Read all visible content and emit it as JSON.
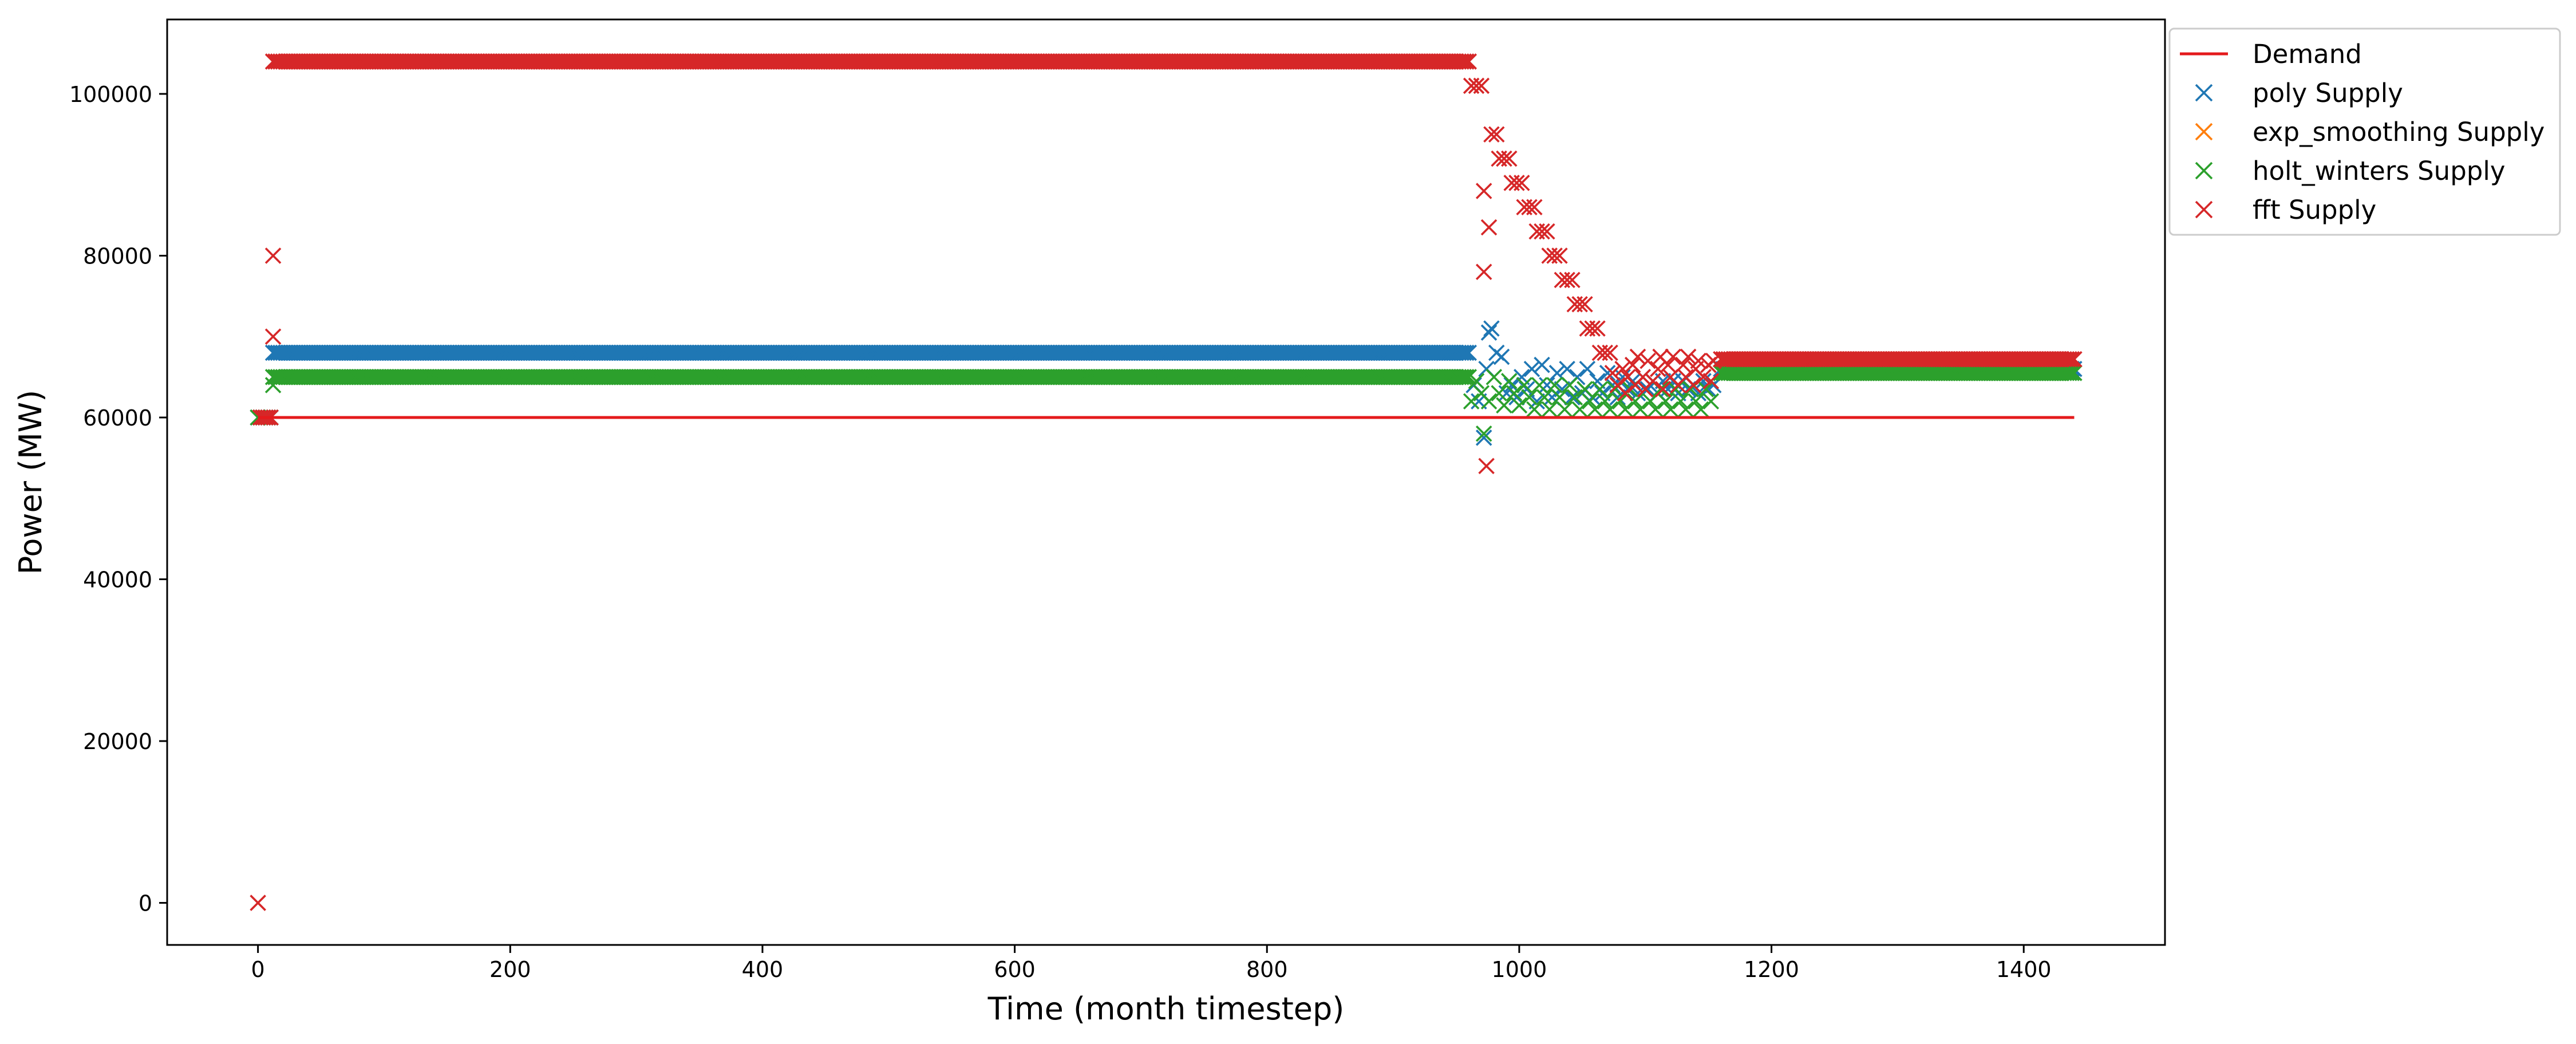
{
  "chart_data": {
    "type": "scatter",
    "title": "",
    "xlabel": "Time (month timestep)",
    "ylabel": "Power (MW)",
    "xlim": [
      -72,
      1512
    ],
    "ylim": [
      -5200,
      109200
    ],
    "xticks": [
      0,
      200,
      400,
      600,
      800,
      1000,
      1200,
      1400
    ],
    "yticks": [
      0,
      20000,
      40000,
      60000,
      80000,
      100000
    ],
    "grid": false,
    "legend_position": "outside-top-right",
    "series": [
      {
        "name": "Demand",
        "mark": "line",
        "color": "#e41a1c",
        "x": [
          0,
          1440
        ],
        "y": [
          60000,
          60000
        ]
      },
      {
        "name": "poly Supply",
        "mark": "x",
        "color": "#1f77b4",
        "segments": [
          {
            "x_start": 0,
            "x_end": 10,
            "step": 2,
            "y": 60000
          },
          {
            "x_start": 12,
            "x_end": 960,
            "step": 2,
            "y": 68000
          },
          {
            "x_start": 1160,
            "x_end": 1440,
            "step": 2,
            "y": 66000
          }
        ],
        "points": [
          [
            964,
            64000
          ],
          [
            968,
            62000
          ],
          [
            972,
            57500
          ],
          [
            974,
            66000
          ],
          [
            976,
            70500
          ],
          [
            978,
            71000
          ],
          [
            982,
            68000
          ],
          [
            986,
            67500
          ],
          [
            990,
            63000
          ],
          [
            994,
            64000
          ],
          [
            998,
            62500
          ],
          [
            1002,
            65000
          ],
          [
            1006,
            63500
          ],
          [
            1010,
            66000
          ],
          [
            1014,
            62000
          ],
          [
            1018,
            66500
          ],
          [
            1022,
            64000
          ],
          [
            1026,
            62500
          ],
          [
            1030,
            65500
          ],
          [
            1034,
            63500
          ],
          [
            1038,
            66000
          ],
          [
            1042,
            62500
          ],
          [
            1046,
            65000
          ],
          [
            1050,
            63000
          ],
          [
            1054,
            66000
          ],
          [
            1058,
            62500
          ],
          [
            1062,
            64500
          ],
          [
            1066,
            63000
          ],
          [
            1070,
            65500
          ],
          [
            1074,
            64000
          ],
          [
            1078,
            62500
          ],
          [
            1082,
            65000
          ],
          [
            1086,
            63500
          ],
          [
            1090,
            64500
          ],
          [
            1094,
            63000
          ],
          [
            1098,
            65000
          ],
          [
            1102,
            63500
          ],
          [
            1106,
            64500
          ],
          [
            1110,
            63000
          ],
          [
            1114,
            64500
          ],
          [
            1118,
            63500
          ],
          [
            1122,
            64500
          ],
          [
            1126,
            63000
          ],
          [
            1130,
            64500
          ],
          [
            1134,
            63500
          ],
          [
            1138,
            64000
          ],
          [
            1142,
            63000
          ],
          [
            1146,
            64500
          ],
          [
            1150,
            63500
          ],
          [
            1154,
            64000
          ]
        ]
      },
      {
        "name": "exp_smoothing Supply",
        "mark": "x",
        "color": "#ff7f0e",
        "segments": [],
        "points": []
      },
      {
        "name": "holt_winters Supply",
        "mark": "x",
        "color": "#2ca02c",
        "segments": [
          {
            "x_start": 0,
            "x_end": 10,
            "step": 2,
            "y": 60000
          },
          {
            "x_start": 12,
            "x_end": 960,
            "step": 2,
            "y": 65000
          },
          {
            "x_start": 1160,
            "x_end": 1440,
            "step": 2,
            "y": 65500
          }
        ],
        "points": [
          [
            12,
            64000
          ],
          [
            962,
            62000
          ],
          [
            966,
            64500
          ],
          [
            970,
            63000
          ],
          [
            972,
            58000
          ],
          [
            976,
            62000
          ],
          [
            980,
            65000
          ],
          [
            984,
            63000
          ],
          [
            988,
            61500
          ],
          [
            992,
            64500
          ],
          [
            996,
            63000
          ],
          [
            1000,
            61500
          ],
          [
            1004,
            64000
          ],
          [
            1008,
            62500
          ],
          [
            1012,
            61000
          ],
          [
            1016,
            64000
          ],
          [
            1020,
            62500
          ],
          [
            1024,
            61000
          ],
          [
            1028,
            64000
          ],
          [
            1032,
            62500
          ],
          [
            1036,
            61000
          ],
          [
            1040,
            64000
          ],
          [
            1044,
            62500
          ],
          [
            1048,
            61000
          ],
          [
            1052,
            63500
          ],
          [
            1056,
            62000
          ],
          [
            1060,
            61000
          ],
          [
            1064,
            63500
          ],
          [
            1068,
            62000
          ],
          [
            1072,
            61000
          ],
          [
            1076,
            63500
          ],
          [
            1080,
            62000
          ],
          [
            1084,
            61000
          ],
          [
            1088,
            63500
          ],
          [
            1092,
            62000
          ],
          [
            1096,
            61000
          ],
          [
            1100,
            63500
          ],
          [
            1104,
            62000
          ],
          [
            1108,
            61000
          ],
          [
            1112,
            63500
          ],
          [
            1116,
            62000
          ],
          [
            1120,
            61000
          ],
          [
            1124,
            63500
          ],
          [
            1128,
            62000
          ],
          [
            1132,
            61000
          ],
          [
            1136,
            63500
          ],
          [
            1140,
            62000
          ],
          [
            1144,
            61000
          ],
          [
            1148,
            63500
          ],
          [
            1152,
            62000
          ]
        ]
      },
      {
        "name": "fft Supply",
        "mark": "x",
        "color": "#d62728",
        "segments": [
          {
            "x_start": 2,
            "x_end": 10,
            "step": 2,
            "y": 60000
          },
          {
            "x_start": 12,
            "x_end": 960,
            "step": 2,
            "y": 104000
          },
          {
            "x_start": 1160,
            "x_end": 1440,
            "step": 2,
            "y": 67200
          }
        ],
        "points": [
          [
            0,
            0
          ],
          [
            12,
            80000
          ],
          [
            12,
            70000
          ],
          [
            962,
            101000
          ],
          [
            966,
            101000
          ],
          [
            970,
            101000
          ],
          [
            972,
            88000
          ],
          [
            972,
            78000
          ],
          [
            974,
            54000
          ],
          [
            976,
            83500
          ],
          [
            978,
            95000
          ],
          [
            982,
            95000
          ],
          [
            984,
            92000
          ],
          [
            988,
            92000
          ],
          [
            992,
            92000
          ],
          [
            994,
            89000
          ],
          [
            998,
            89000
          ],
          [
            1002,
            89000
          ],
          [
            1004,
            86000
          ],
          [
            1008,
            86000
          ],
          [
            1012,
            86000
          ],
          [
            1014,
            83000
          ],
          [
            1018,
            83000
          ],
          [
            1022,
            83000
          ],
          [
            1024,
            80000
          ],
          [
            1028,
            80000
          ],
          [
            1032,
            80000
          ],
          [
            1034,
            77000
          ],
          [
            1038,
            77000
          ],
          [
            1042,
            77000
          ],
          [
            1044,
            74000
          ],
          [
            1048,
            74000
          ],
          [
            1052,
            74000
          ],
          [
            1054,
            71000
          ],
          [
            1058,
            71000
          ],
          [
            1062,
            71000
          ],
          [
            1064,
            68000
          ],
          [
            1068,
            68000
          ],
          [
            1072,
            68000
          ],
          [
            1074,
            65500
          ],
          [
            1078,
            64000
          ],
          [
            1082,
            66000
          ],
          [
            1084,
            63000
          ],
          [
            1086,
            65000
          ],
          [
            1090,
            66500
          ],
          [
            1092,
            64000
          ],
          [
            1094,
            67500
          ],
          [
            1098,
            65000
          ],
          [
            1100,
            63500
          ],
          [
            1102,
            67000
          ],
          [
            1106,
            64500
          ],
          [
            1110,
            66000
          ],
          [
            1112,
            67500
          ],
          [
            1114,
            63500
          ],
          [
            1118,
            66500
          ],
          [
            1120,
            65000
          ],
          [
            1122,
            67500
          ],
          [
            1126,
            64000
          ],
          [
            1130,
            66500
          ],
          [
            1132,
            65000
          ],
          [
            1134,
            67500
          ],
          [
            1138,
            64000
          ],
          [
            1140,
            66000
          ],
          [
            1142,
            67000
          ],
          [
            1146,
            65000
          ],
          [
            1150,
            66500
          ],
          [
            1152,
            64500
          ],
          [
            1154,
            67000
          ]
        ]
      }
    ]
  }
}
